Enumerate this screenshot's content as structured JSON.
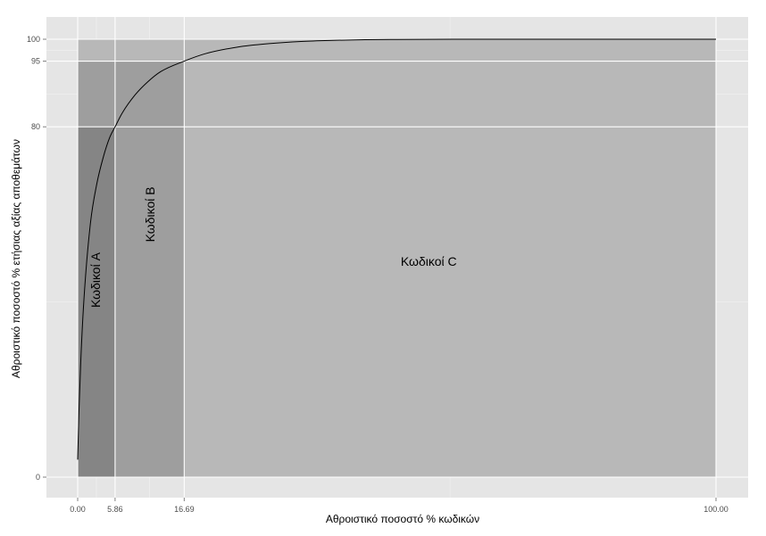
{
  "chart_data": {
    "type": "area",
    "title": "",
    "xlabel": "Αθροιστικό ποσοστό % κωδικών",
    "ylabel": "Αθροιστικό ποσοστό % ετήσιας αξίας αποθεμάτων",
    "xlim": [
      0,
      100
    ],
    "ylim": [
      0,
      100
    ],
    "x_ticks": [
      0,
      5.86,
      16.69,
      100
    ],
    "x_tick_labels": [
      "0.00",
      "5.86",
      "16.69",
      "100.00"
    ],
    "y_ticks": [
      0,
      80,
      95,
      100
    ],
    "y_tick_labels": [
      "0",
      "80",
      "95",
      "100"
    ],
    "grid": true,
    "background_color": "#e5e5e5",
    "regions": [
      {
        "label": "Κωδικοί C",
        "x": [
          0,
          100
        ],
        "y": [
          0,
          100
        ],
        "color": "#b8b8b8"
      },
      {
        "label": "Κωδικοί B",
        "x": [
          0,
          16.69
        ],
        "y": [
          0,
          95
        ],
        "color": "#9e9e9e"
      },
      {
        "label": "Κωδικοί A",
        "x": [
          0,
          5.86
        ],
        "y": [
          0,
          80
        ],
        "color": "#858585"
      }
    ],
    "region_label_positions": [
      {
        "label": "Κωδικοί A",
        "x": 3,
        "y": 45,
        "rotated": true
      },
      {
        "label": "Κωδικοί B",
        "x": 11.5,
        "y": 60,
        "rotated": true
      },
      {
        "label": "Κωδικοί C",
        "x": 55,
        "y": 49,
        "rotated": false
      }
    ],
    "series": [
      {
        "curve": "cumulative",
        "x": [
          0,
          0.2,
          0.5,
          1,
          2,
          3,
          4,
          5,
          5.86,
          7,
          9,
          11,
          13,
          16.69,
          20,
          25,
          30,
          35,
          40,
          45,
          50,
          60,
          70,
          80,
          90,
          100
        ],
        "y": [
          4,
          15,
          27,
          41,
          58,
          67,
          73,
          77.5,
          80,
          83.2,
          87.3,
          90.3,
          92.6,
          95,
          96.7,
          98.2,
          99,
          99.5,
          99.75,
          99.9,
          99.95,
          100,
          100,
          100,
          100,
          100
        ],
        "color": "#000000"
      }
    ]
  }
}
